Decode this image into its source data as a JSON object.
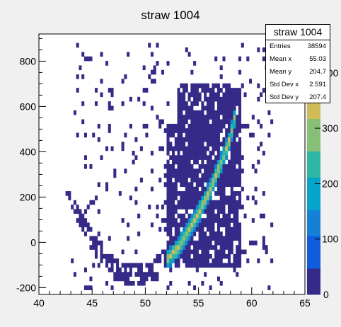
{
  "chart_data": {
    "type": "heatmap",
    "title": "straw 1004",
    "xlabel": "",
    "ylabel": "",
    "xlim": [
      40,
      65
    ],
    "ylim": [
      -230,
      920
    ],
    "x_ticks": [
      40,
      45,
      50,
      55,
      60,
      65
    ],
    "y_ticks": [
      -200,
      0,
      200,
      400,
      600,
      800
    ],
    "z_ticks": [
      100,
      200,
      300,
      400
    ],
    "z_range": [
      0,
      470
    ],
    "palette": [
      "#352a87",
      "#0f5cdd",
      "#1481d6",
      "#06a4ca",
      "#2eb7a4",
      "#87bf77",
      "#d1bb59",
      "#fec832",
      "#f9fb0e"
    ],
    "grid": false,
    "legend": "none",
    "stats_box": {
      "title": "straw 1004",
      "rows": [
        {
          "label": "Entries",
          "value": "38594"
        },
        {
          "label": "Mean x",
          "value": "55.03"
        },
        {
          "label": "Mean y",
          "value": "204.7"
        },
        {
          "label": "Std Dev x",
          "value": "2.591"
        },
        {
          "label": "Std Dev y",
          "value": "207.4"
        }
      ]
    },
    "regions": [
      {
        "name": "dense-core",
        "x": [
          52,
          59
        ],
        "y": [
          -110,
          710
        ],
        "density": 0.82
      },
      {
        "name": "sparse-halo",
        "x": [
          43,
          62
        ],
        "y": [
          -200,
          880
        ],
        "density": 0.07
      },
      {
        "name": "left-arc",
        "x": [
          42.5,
          52
        ],
        "y": [
          -150,
          260
        ],
        "density": 0.6
      }
    ],
    "ridge": {
      "x": [
        52,
        53,
        54,
        55,
        56,
        57,
        58,
        58.6
      ],
      "y": [
        -80,
        -25,
        50,
        130,
        230,
        340,
        470,
        600
      ],
      "peak": 420
    }
  }
}
